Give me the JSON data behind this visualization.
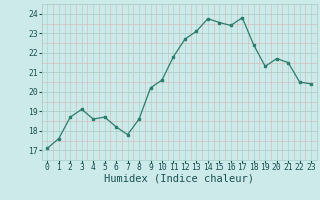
{
  "x": [
    0,
    1,
    2,
    3,
    4,
    5,
    6,
    7,
    8,
    9,
    10,
    11,
    12,
    13,
    14,
    15,
    16,
    17,
    18,
    19,
    20,
    21,
    22,
    23
  ],
  "y": [
    17.1,
    17.6,
    18.7,
    19.1,
    18.6,
    18.7,
    18.2,
    17.8,
    18.6,
    20.2,
    20.6,
    21.8,
    22.7,
    23.1,
    23.75,
    23.55,
    23.4,
    23.8,
    22.4,
    21.3,
    21.7,
    21.5,
    20.5,
    20.4
  ],
  "line_color": "#2d7d6e",
  "marker_color": "#2d7d6e",
  "bg_color": "#cceaea",
  "grid_color_major": "#aad4cc",
  "grid_color_minor": "#d4bebe",
  "xlabel": "Humidex (Indice chaleur)",
  "xlabel_color": "#1a5050",
  "xlabel_fontsize": 7.5,
  "tick_color": "#1a5050",
  "tick_fontsize": 5.8,
  "ylim": [
    16.5,
    24.5
  ],
  "xlim": [
    -0.5,
    23.5
  ],
  "yticks": [
    17,
    18,
    19,
    20,
    21,
    22,
    23,
    24
  ],
  "xticks": [
    0,
    1,
    2,
    3,
    4,
    5,
    6,
    7,
    8,
    9,
    10,
    11,
    12,
    13,
    14,
    15,
    16,
    17,
    18,
    19,
    20,
    21,
    22,
    23
  ]
}
